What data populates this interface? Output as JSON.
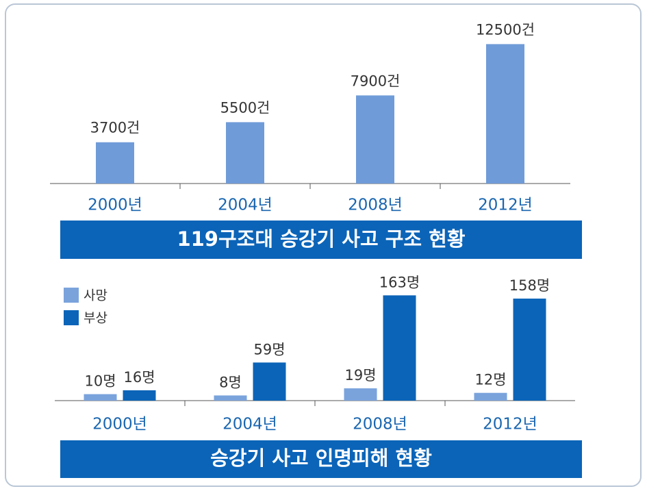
{
  "chart_data": [
    {
      "type": "bar",
      "title": "119구조대 승강기 사고 구조 현황",
      "categories": [
        "2000년",
        "2004년",
        "2008년",
        "2012년"
      ],
      "values": [
        3700,
        5500,
        7900,
        12500
      ],
      "value_labels": [
        "3700건",
        "5500건",
        "7900건",
        "12500건"
      ],
      "color": "#6f9bd8",
      "ylim": [
        0,
        14000
      ]
    },
    {
      "type": "grouped_bar",
      "title": "승강기 사고 인명피해 현황",
      "categories": [
        "2000년",
        "2004년",
        "2008년",
        "2012년"
      ],
      "series": [
        {
          "name": "사망",
          "color": "#7aa3dc",
          "values": [
            10,
            8,
            19,
            12
          ],
          "value_labels": [
            "10명",
            "8명",
            "19명",
            "12명"
          ]
        },
        {
          "name": "부상",
          "color": "#0b64b8",
          "values": [
            16,
            59,
            163,
            158
          ],
          "value_labels": [
            "16명",
            "59명",
            "163명",
            "158명"
          ]
        }
      ],
      "legend": "upper left",
      "ylim": [
        0,
        175
      ]
    }
  ]
}
